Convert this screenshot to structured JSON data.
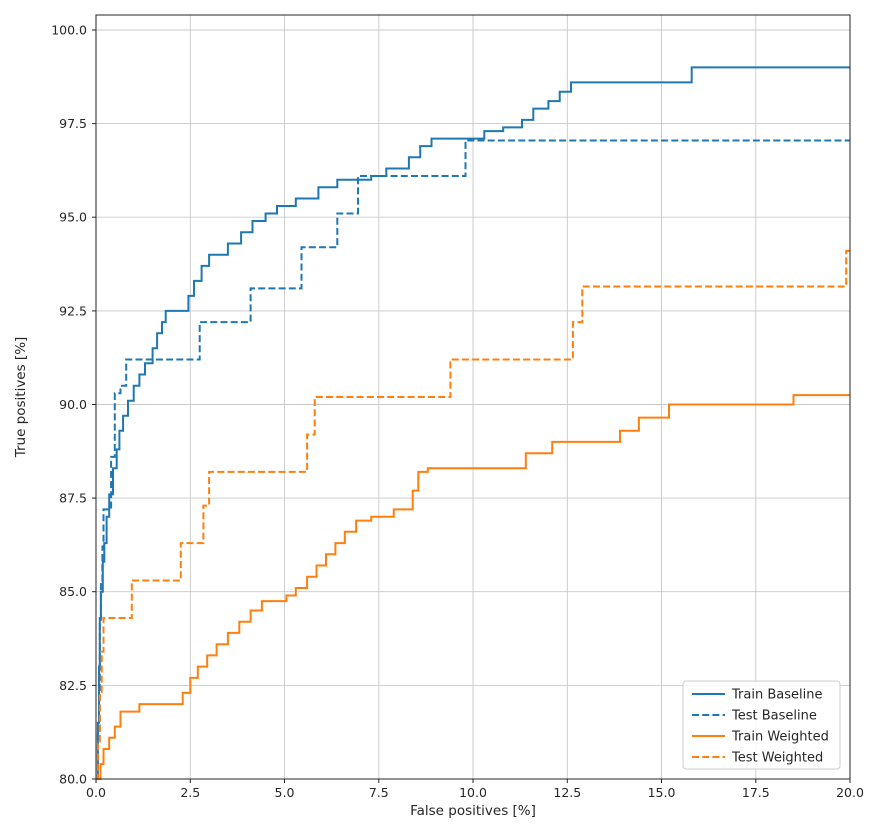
{
  "figure": {
    "background": "#ffffff"
  },
  "chart_data": {
    "type": "line",
    "subtype": "step-post",
    "title": "",
    "xlabel": "False positives [%]",
    "ylabel": "True positives [%]",
    "xlim": [
      0,
      20
    ],
    "ylim": [
      80,
      100.4
    ],
    "xticks": [
      0,
      2.5,
      5,
      7.5,
      10,
      12.5,
      15,
      17.5,
      20
    ],
    "xtick_labels": [
      "0.0",
      "2.5",
      "5.0",
      "7.5",
      "10.0",
      "12.5",
      "15.0",
      "17.5",
      "20.0"
    ],
    "yticks": [
      80,
      82.5,
      85,
      87.5,
      90,
      92.5,
      95,
      97.5,
      100
    ],
    "ytick_labels": [
      "80.0",
      "82.5",
      "85.0",
      "87.5",
      "90.0",
      "92.5",
      "95.0",
      "97.5",
      "100.0"
    ],
    "grid": true,
    "legend_position": "lower right",
    "colors": {
      "blue": "#1f77b4",
      "orange": "#ff7f0e",
      "grid": "#c9c9c9",
      "spine": "#262626",
      "legend_frame": "#cccccc"
    },
    "series": [
      {
        "name": "Train Baseline",
        "color": "#1f77b4",
        "dash": "solid",
        "points": [
          [
            0,
            80
          ],
          [
            0.05,
            81.5
          ],
          [
            0.08,
            83.0
          ],
          [
            0.1,
            84.3
          ],
          [
            0.13,
            85.0
          ],
          [
            0.18,
            85.8
          ],
          [
            0.22,
            86.3
          ],
          [
            0.28,
            87.0
          ],
          [
            0.35,
            87.6
          ],
          [
            0.45,
            88.3
          ],
          [
            0.55,
            88.8
          ],
          [
            0.62,
            89.3
          ],
          [
            0.72,
            89.7
          ],
          [
            0.85,
            90.1
          ],
          [
            1.0,
            90.5
          ],
          [
            1.15,
            90.8
          ],
          [
            1.3,
            91.1
          ],
          [
            1.5,
            91.5
          ],
          [
            1.62,
            91.9
          ],
          [
            1.75,
            92.2
          ],
          [
            1.85,
            92.5
          ],
          [
            2.45,
            92.9
          ],
          [
            2.6,
            93.3
          ],
          [
            2.8,
            93.7
          ],
          [
            3.0,
            94.0
          ],
          [
            3.5,
            94.3
          ],
          [
            3.85,
            94.6
          ],
          [
            4.15,
            94.9
          ],
          [
            4.5,
            95.1
          ],
          [
            4.8,
            95.3
          ],
          [
            5.3,
            95.5
          ],
          [
            5.9,
            95.8
          ],
          [
            6.4,
            96.0
          ],
          [
            7.3,
            96.1
          ],
          [
            7.7,
            96.3
          ],
          [
            8.3,
            96.6
          ],
          [
            8.6,
            96.9
          ],
          [
            8.9,
            97.1
          ],
          [
            10.3,
            97.3
          ],
          [
            10.8,
            97.4
          ],
          [
            11.3,
            97.6
          ],
          [
            11.6,
            97.9
          ],
          [
            12.0,
            98.1
          ],
          [
            12.3,
            98.35
          ],
          [
            12.6,
            98.6
          ],
          [
            15.8,
            99.0
          ],
          [
            20,
            99.0
          ]
        ]
      },
      {
        "name": "Test Baseline",
        "color": "#1f77b4",
        "dash": "dashed",
        "points": [
          [
            0,
            80
          ],
          [
            0.05,
            81.2
          ],
          [
            0.1,
            84.2
          ],
          [
            0.13,
            85.3
          ],
          [
            0.17,
            86.2
          ],
          [
            0.2,
            87.2
          ],
          [
            0.4,
            88.6
          ],
          [
            0.5,
            90.3
          ],
          [
            0.65,
            90.5
          ],
          [
            0.8,
            91.2
          ],
          [
            2.75,
            92.2
          ],
          [
            4.1,
            93.1
          ],
          [
            5.45,
            94.2
          ],
          [
            6.4,
            95.1
          ],
          [
            6.95,
            96.1
          ],
          [
            9.8,
            97.05
          ],
          [
            20,
            97.05
          ]
        ]
      },
      {
        "name": "Train Weighted",
        "color": "#ff7f0e",
        "dash": "solid",
        "points": [
          [
            0,
            80
          ],
          [
            0.12,
            80.4
          ],
          [
            0.2,
            80.8
          ],
          [
            0.35,
            81.1
          ],
          [
            0.5,
            81.4
          ],
          [
            0.65,
            81.8
          ],
          [
            1.15,
            82.0
          ],
          [
            2.3,
            82.3
          ],
          [
            2.5,
            82.7
          ],
          [
            2.7,
            83.0
          ],
          [
            2.95,
            83.3
          ],
          [
            3.2,
            83.6
          ],
          [
            3.5,
            83.9
          ],
          [
            3.8,
            84.2
          ],
          [
            4.1,
            84.5
          ],
          [
            4.4,
            84.75
          ],
          [
            5.05,
            84.9
          ],
          [
            5.3,
            85.1
          ],
          [
            5.6,
            85.4
          ],
          [
            5.85,
            85.7
          ],
          [
            6.1,
            86.0
          ],
          [
            6.35,
            86.3
          ],
          [
            6.6,
            86.6
          ],
          [
            6.9,
            86.9
          ],
          [
            7.3,
            87.0
          ],
          [
            7.9,
            87.2
          ],
          [
            8.4,
            87.7
          ],
          [
            8.55,
            88.2
          ],
          [
            8.8,
            88.3
          ],
          [
            11.4,
            88.7
          ],
          [
            12.1,
            89.0
          ],
          [
            13.9,
            89.3
          ],
          [
            14.4,
            89.65
          ],
          [
            15.2,
            90.0
          ],
          [
            18.5,
            90.25
          ],
          [
            20,
            90.25
          ]
        ]
      },
      {
        "name": "Test Weighted",
        "color": "#ff7f0e",
        "dash": "dashed",
        "points": [
          [
            0,
            80
          ],
          [
            0.05,
            81.0
          ],
          [
            0.1,
            82.3
          ],
          [
            0.15,
            83.4
          ],
          [
            0.2,
            84.3
          ],
          [
            0.95,
            85.3
          ],
          [
            2.25,
            86.3
          ],
          [
            2.85,
            87.3
          ],
          [
            3.0,
            88.2
          ],
          [
            5.6,
            89.2
          ],
          [
            5.8,
            90.2
          ],
          [
            9.4,
            91.2
          ],
          [
            12.65,
            92.2
          ],
          [
            12.9,
            93.15
          ],
          [
            19.9,
            94.1
          ],
          [
            20,
            94.1
          ]
        ]
      }
    ]
  }
}
